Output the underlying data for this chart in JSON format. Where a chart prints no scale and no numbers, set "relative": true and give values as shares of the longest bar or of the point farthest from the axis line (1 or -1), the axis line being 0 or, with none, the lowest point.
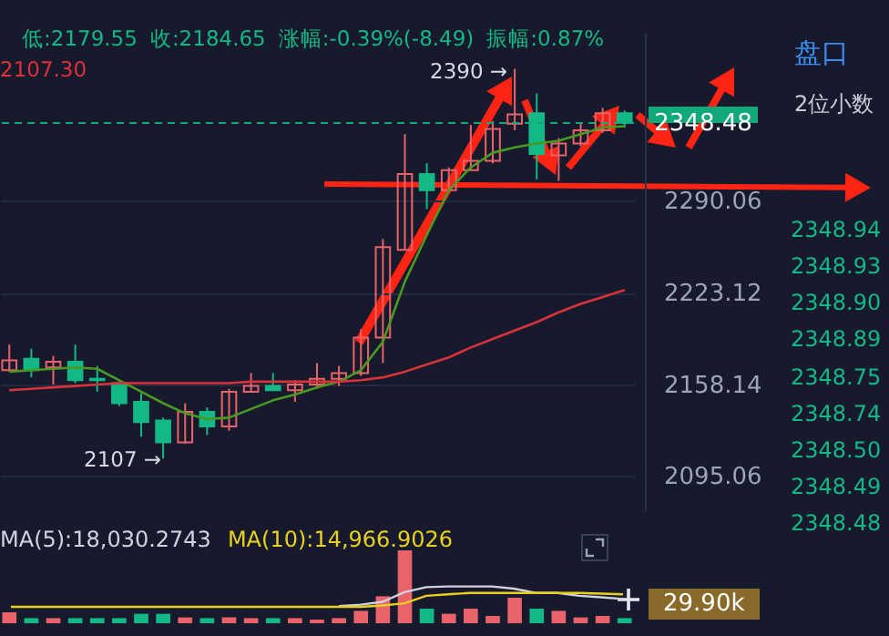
{
  "chart_data": [
    {
      "type": "candlestick",
      "categories": [
        null,
        null,
        null,
        null,
        null,
        null,
        null,
        null,
        null,
        null,
        null,
        null,
        null,
        null,
        null,
        null,
        null,
        null,
        null,
        null,
        null,
        null,
        null,
        null,
        null,
        null,
        null,
        null,
        null
      ],
      "ohlc": [
        [
          2168,
          2186,
          2167,
          2175
        ],
        [
          2176,
          2183,
          2163,
          2168
        ],
        [
          2170,
          2178,
          2158,
          2174
        ],
        [
          2174,
          2186,
          2159,
          2161
        ],
        [
          2162,
          2171,
          2153,
          2161
        ],
        [
          2159,
          2159,
          2143,
          2145
        ],
        [
          2146,
          2152,
          2122,
          2132
        ],
        [
          2133,
          2135,
          2107,
          2118
        ],
        [
          2118,
          2145,
          2117,
          2139
        ],
        [
          2139,
          2142,
          2123,
          2129
        ],
        [
          2129,
          2155,
          2126,
          2153
        ],
        [
          2153,
          2166,
          2153,
          2157
        ],
        [
          2157,
          2166,
          2154,
          2154
        ],
        [
          2154,
          2161,
          2146,
          2158
        ],
        [
          2158,
          2173,
          2155,
          2162
        ],
        [
          2162,
          2171,
          2157,
          2166
        ],
        [
          2166,
          2197,
          2164,
          2191
        ],
        [
          2191,
          2262,
          2173,
          2256
        ],
        [
          2254,
          2340,
          2254,
          2310
        ],
        [
          2310,
          2318,
          2284,
          2298
        ],
        [
          2298,
          2315,
          2297,
          2313
        ],
        [
          2313,
          2347,
          2313,
          2320
        ],
        [
          2320,
          2350,
          2318,
          2344
        ],
        [
          2348,
          2390,
          2343,
          2355
        ],
        [
          2356,
          2371,
          2306,
          2325
        ],
        [
          2324,
          2337,
          2305,
          2333
        ],
        [
          2333,
          2349,
          2331,
          2343
        ],
        [
          2343,
          2360,
          2341,
          2356
        ],
        [
          2356,
          2358,
          2345,
          2348.48
        ]
      ],
      "colors": [
        "#e8636a",
        "#13b886",
        "#e8636a",
        "#13b886",
        "#13b886",
        "#13b886",
        "#13b886",
        "#13b886",
        "#e8636a",
        "#13b886",
        "#e8636a",
        "#e8636a",
        "#13b886",
        "#e8636a",
        "#e8636a",
        "#e8636a",
        "#e8636a",
        "#e8636a",
        "#e8636a",
        "#13b886",
        "#e8636a",
        "#e8636a",
        "#e8636a",
        "#e8636a",
        "#13b886",
        "#e8636a",
        "#e8636a",
        "#e8636a",
        "#13b886"
      ],
      "series": [
        {
          "type": "line",
          "color": "#4a9a22",
          "values": [
            2167,
            2168,
            2169,
            2170,
            2169,
            2161,
            2153,
            2145,
            2138,
            2134,
            2135,
            2141,
            2147,
            2151,
            2156,
            2160,
            2168,
            2188,
            2231,
            2265,
            2298,
            2315,
            2326,
            2330,
            2333,
            2335,
            2340,
            2345,
            2346
          ]
        },
        {
          "type": "line",
          "color": "#d8323a",
          "values": [
            2154,
            2155,
            2156,
            2157,
            2158,
            2159,
            2159,
            2159,
            2159,
            2159,
            2159,
            2160,
            2160,
            2160,
            2160,
            2160,
            2161,
            2163,
            2167,
            2172,
            2177,
            2184,
            2190,
            2196,
            2202,
            2209,
            2215,
            2220,
            2225
          ]
        }
      ],
      "ylim": [
        2072,
        2418
      ],
      "yticks": [
        2095.06,
        2158.14,
        2223.12,
        2290.06
      ],
      "log": "y",
      "grid": "y",
      "tick_labels": "y",
      "ref_lines": [
        {
          "axis": "y",
          "value": 2348.48,
          "label": "2348.48",
          "color": "#0fa97a",
          "line_style": "dashed"
        }
      ],
      "annotations": [
        "低:2179.55",
        "收:2184.65",
        "涨幅:-0.39%(-8.49)",
        "振幅:0.87%",
        "2107.30",
        "2390 →",
        "2107 →"
      ]
    },
    {
      "type": "bar",
      "relative": true,
      "categories": [
        null,
        null,
        null,
        null,
        null,
        null,
        null,
        null,
        null,
        null,
        null,
        null,
        null,
        null,
        null,
        null,
        null,
        null,
        null,
        null,
        null,
        null,
        null,
        null,
        null,
        null,
        null,
        null,
        null
      ],
      "values": [
        0.15,
        0.07,
        0.07,
        0.07,
        0.07,
        0.07,
        0.13,
        0.13,
        0.08,
        0.07,
        0.08,
        0.07,
        0.07,
        0.07,
        0.05,
        0.07,
        0.17,
        0.37,
        1,
        0.2,
        0.13,
        0.2,
        0.1,
        0.35,
        0.2,
        0.17,
        0.08,
        0.1,
        0.07
      ],
      "colors": [
        "#e8636a",
        "#13b886",
        "#e8636a",
        "#13b886",
        "#13b886",
        "#13b886",
        "#13b886",
        "#13b886",
        "#e8636a",
        "#13b886",
        "#e8636a",
        "#e8636a",
        "#13b886",
        "#e8636a",
        "#e8636a",
        "#e8636a",
        "#e8636a",
        "#e8636a",
        "#e8636a",
        "#13b886",
        "#e8636a",
        "#e8636a",
        "#e8636a",
        "#e8636a",
        "#13b886",
        "#e8636a",
        "#e8636a",
        "#e8636a",
        "#13b886"
      ],
      "annotations": [
        "29.90k"
      ]
    },
    {
      "type": "line",
      "relative": true,
      "categories": [
        null,
        null,
        null,
        null,
        null,
        null,
        null,
        null,
        null,
        null,
        null,
        null,
        null,
        null,
        null,
        null,
        null,
        null,
        null,
        null,
        null,
        null,
        null,
        null,
        null,
        null,
        null,
        null,
        null
      ],
      "series": [
        {
          "name": "MA(5):18,030.2743",
          "color": "#d0d3de",
          "values": [
            null,
            null,
            null,
            null,
            null,
            null,
            null,
            null,
            null,
            null,
            null,
            null,
            null,
            null,
            null,
            0.18,
            0.24,
            0.36,
            0.76,
            0.97,
            1,
            1,
            1,
            0.91,
            0.73,
            0.73,
            0.61,
            0.55,
            0.48
          ]
        },
        {
          "name": "MA(10):14,966.9026",
          "color": "#e8d020",
          "values": [
            0.15,
            0.15,
            0.15,
            0.15,
            0.15,
            0.15,
            0.15,
            0.15,
            0.15,
            0.15,
            0.15,
            0.15,
            0.15,
            0.15,
            0.15,
            0.15,
            0.15,
            0.21,
            0.3,
            0.61,
            0.67,
            0.73,
            0.73,
            0.73,
            0.73,
            0.73,
            0.73,
            0.7,
            0.67
          ]
        }
      ]
    },
    {
      "type": "other",
      "annotations": [
        "盘口",
        "2位小数",
        "2348.94",
        "2348.93",
        "2348.90",
        "2348.89",
        "2348.75",
        "2348.74",
        "2348.50",
        "2348.49",
        "2348.48"
      ]
    }
  ]
}
